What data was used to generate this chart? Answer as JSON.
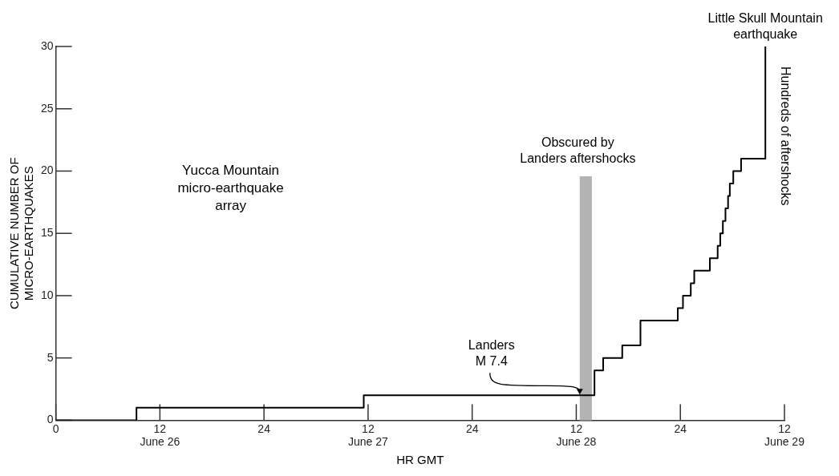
{
  "chart_data": {
    "type": "step",
    "xlabel": "HR GMT",
    "ylabel": "CUMULATIVE NUMBER OF\nMICRO-EARTHQUAKES",
    "xlim": [
      "--06-26T00:00",
      "--06-29T12:00"
    ],
    "ylim": [
      0,
      30
    ],
    "xticks": [
      {
        "value": "--06-26T00:00",
        "label": "0"
      },
      {
        "value": "--06-26T12:00",
        "label": "12\nJune 26"
      },
      {
        "value": "--06-27T00:00",
        "label": "24"
      },
      {
        "value": "--06-27T12:00",
        "label": "12\nJune 27"
      },
      {
        "value": "--06-28T00:00",
        "label": "24"
      },
      {
        "value": "--06-28T12:00",
        "label": "12\nJune 28"
      },
      {
        "value": "--06-29T00:00",
        "label": "24"
      },
      {
        "value": "--06-29T12:00",
        "label": "12\nJune 29"
      }
    ],
    "yticks": [
      0,
      5,
      10,
      15,
      20,
      25,
      30
    ],
    "grid": false,
    "legend": false,
    "marker": "none",
    "line_style": "solid",
    "series": [
      {
        "color": "#000000",
        "x": [
          "--06-26T00:00",
          "--06-26T09:18",
          "--06-27T11:30",
          "--06-28T14:06",
          "--06-28T14:06",
          "--06-28T15:06",
          "--06-28T17:18",
          "--06-28T19:24",
          "--06-28T23:42",
          "--06-29T00:18",
          "--06-29T01:12",
          "--06-29T01:36",
          "--06-29T03:24",
          "--06-29T04:18",
          "--06-29T04:36",
          "--06-29T04:54",
          "--06-29T05:12",
          "--06-29T05:30",
          "--06-29T05:42",
          "--06-29T06:06",
          "--06-29T07:00",
          "--06-29T09:48"
        ],
        "values": [
          0,
          1,
          2,
          2,
          4,
          5,
          6,
          8,
          9,
          10,
          11,
          12,
          13,
          14,
          15,
          16,
          17,
          18,
          19,
          20,
          21,
          30
        ]
      }
    ],
    "bands": [
      {
        "axis": "x",
        "from": "--06-28T12:24",
        "to": "--06-28T13:48",
        "label": "Obscured by\nLanders aftershocks",
        "color": "#b3b3b3"
      }
    ],
    "annotations": [
      "Yucca Mountain\nmicro-earthquake\narray",
      {
        "text": "Landers\nM 7.4",
        "x": "--06-28T12:24",
        "y": 2
      },
      {
        "text": "Little Skull Mountain\nearthquake",
        "x": "--06-29T09:48",
        "y": 30
      },
      {
        "text": "Hundreds of aftershocks",
        "x": "--06-29T09:48",
        "y": 25
      }
    ]
  }
}
